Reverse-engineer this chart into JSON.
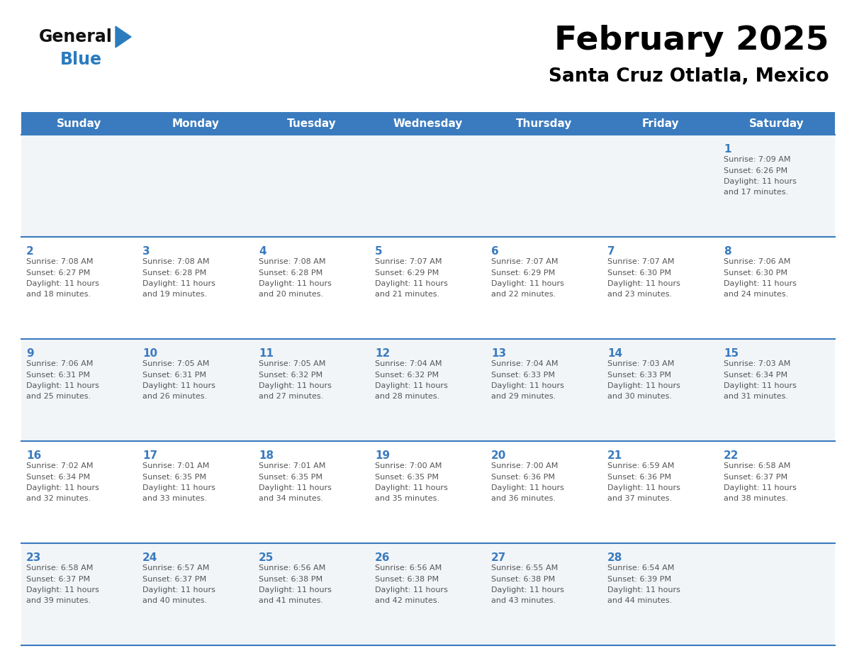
{
  "title": "February 2025",
  "subtitle": "Santa Cruz Otlatla, Mexico",
  "days_of_week": [
    "Sunday",
    "Monday",
    "Tuesday",
    "Wednesday",
    "Thursday",
    "Friday",
    "Saturday"
  ],
  "header_bg_color": "#3a7bbf",
  "header_text_color": "#ffffff",
  "cell_bg_even": "#f2f5f8",
  "cell_bg_odd": "#ffffff",
  "grid_line_color": "#3a7bbf",
  "day_number_color": "#3a7bbf",
  "text_color": "#555555",
  "title_color": "#000000",
  "subtitle_color": "#000000",
  "logo_general_color": "#111111",
  "logo_blue_color": "#2b7bbf",
  "calendar_data": [
    [
      null,
      null,
      null,
      null,
      null,
      null,
      {
        "day": 1,
        "sunrise": "7:09 AM",
        "sunset": "6:26 PM",
        "daylight_hours": 11,
        "daylight_minutes": 17
      }
    ],
    [
      {
        "day": 2,
        "sunrise": "7:08 AM",
        "sunset": "6:27 PM",
        "daylight_hours": 11,
        "daylight_minutes": 18
      },
      {
        "day": 3,
        "sunrise": "7:08 AM",
        "sunset": "6:28 PM",
        "daylight_hours": 11,
        "daylight_minutes": 19
      },
      {
        "day": 4,
        "sunrise": "7:08 AM",
        "sunset": "6:28 PM",
        "daylight_hours": 11,
        "daylight_minutes": 20
      },
      {
        "day": 5,
        "sunrise": "7:07 AM",
        "sunset": "6:29 PM",
        "daylight_hours": 11,
        "daylight_minutes": 21
      },
      {
        "day": 6,
        "sunrise": "7:07 AM",
        "sunset": "6:29 PM",
        "daylight_hours": 11,
        "daylight_minutes": 22
      },
      {
        "day": 7,
        "sunrise": "7:07 AM",
        "sunset": "6:30 PM",
        "daylight_hours": 11,
        "daylight_minutes": 23
      },
      {
        "day": 8,
        "sunrise": "7:06 AM",
        "sunset": "6:30 PM",
        "daylight_hours": 11,
        "daylight_minutes": 24
      }
    ],
    [
      {
        "day": 9,
        "sunrise": "7:06 AM",
        "sunset": "6:31 PM",
        "daylight_hours": 11,
        "daylight_minutes": 25
      },
      {
        "day": 10,
        "sunrise": "7:05 AM",
        "sunset": "6:31 PM",
        "daylight_hours": 11,
        "daylight_minutes": 26
      },
      {
        "day": 11,
        "sunrise": "7:05 AM",
        "sunset": "6:32 PM",
        "daylight_hours": 11,
        "daylight_minutes": 27
      },
      {
        "day": 12,
        "sunrise": "7:04 AM",
        "sunset": "6:32 PM",
        "daylight_hours": 11,
        "daylight_minutes": 28
      },
      {
        "day": 13,
        "sunrise": "7:04 AM",
        "sunset": "6:33 PM",
        "daylight_hours": 11,
        "daylight_minutes": 29
      },
      {
        "day": 14,
        "sunrise": "7:03 AM",
        "sunset": "6:33 PM",
        "daylight_hours": 11,
        "daylight_minutes": 30
      },
      {
        "day": 15,
        "sunrise": "7:03 AM",
        "sunset": "6:34 PM",
        "daylight_hours": 11,
        "daylight_minutes": 31
      }
    ],
    [
      {
        "day": 16,
        "sunrise": "7:02 AM",
        "sunset": "6:34 PM",
        "daylight_hours": 11,
        "daylight_minutes": 32
      },
      {
        "day": 17,
        "sunrise": "7:01 AM",
        "sunset": "6:35 PM",
        "daylight_hours": 11,
        "daylight_minutes": 33
      },
      {
        "day": 18,
        "sunrise": "7:01 AM",
        "sunset": "6:35 PM",
        "daylight_hours": 11,
        "daylight_minutes": 34
      },
      {
        "day": 19,
        "sunrise": "7:00 AM",
        "sunset": "6:35 PM",
        "daylight_hours": 11,
        "daylight_minutes": 35
      },
      {
        "day": 20,
        "sunrise": "7:00 AM",
        "sunset": "6:36 PM",
        "daylight_hours": 11,
        "daylight_minutes": 36
      },
      {
        "day": 21,
        "sunrise": "6:59 AM",
        "sunset": "6:36 PM",
        "daylight_hours": 11,
        "daylight_minutes": 37
      },
      {
        "day": 22,
        "sunrise": "6:58 AM",
        "sunset": "6:37 PM",
        "daylight_hours": 11,
        "daylight_minutes": 38
      }
    ],
    [
      {
        "day": 23,
        "sunrise": "6:58 AM",
        "sunset": "6:37 PM",
        "daylight_hours": 11,
        "daylight_minutes": 39
      },
      {
        "day": 24,
        "sunrise": "6:57 AM",
        "sunset": "6:37 PM",
        "daylight_hours": 11,
        "daylight_minutes": 40
      },
      {
        "day": 25,
        "sunrise": "6:56 AM",
        "sunset": "6:38 PM",
        "daylight_hours": 11,
        "daylight_minutes": 41
      },
      {
        "day": 26,
        "sunrise": "6:56 AM",
        "sunset": "6:38 PM",
        "daylight_hours": 11,
        "daylight_minutes": 42
      },
      {
        "day": 27,
        "sunrise": "6:55 AM",
        "sunset": "6:38 PM",
        "daylight_hours": 11,
        "daylight_minutes": 43
      },
      {
        "day": 28,
        "sunrise": "6:54 AM",
        "sunset": "6:39 PM",
        "daylight_hours": 11,
        "daylight_minutes": 44
      },
      null
    ]
  ]
}
